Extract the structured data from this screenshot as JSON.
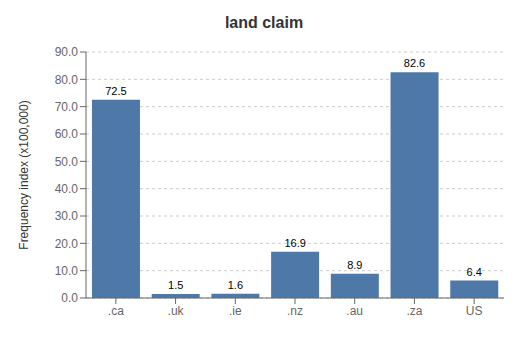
{
  "chart_data": {
    "type": "bar",
    "title": "land claim",
    "categories": [
      ".ca",
      ".uk",
      ".ie",
      ".nz",
      ".au",
      ".za",
      "US"
    ],
    "values": [
      72.5,
      1.5,
      1.6,
      16.9,
      8.9,
      82.6,
      6.4
    ],
    "color": "#4e78a8",
    "ylabel": "Frequency index (x100,000)",
    "ylim": [
      0,
      90
    ],
    "yticks": [
      {
        "value": 0,
        "label": "0.0"
      },
      {
        "value": 10,
        "label": "10.0"
      },
      {
        "value": 20,
        "label": "20.0"
      },
      {
        "value": 30,
        "label": "30.0"
      },
      {
        "value": 40,
        "label": "40.0"
      },
      {
        "value": 50,
        "label": "50.0"
      },
      {
        "value": 60,
        "label": "60.0"
      },
      {
        "value": 70,
        "label": "70.0"
      },
      {
        "value": 80,
        "label": "80.0"
      },
      {
        "value": 90,
        "label": "90.0"
      }
    ],
    "grid": true,
    "data_labels": true
  }
}
